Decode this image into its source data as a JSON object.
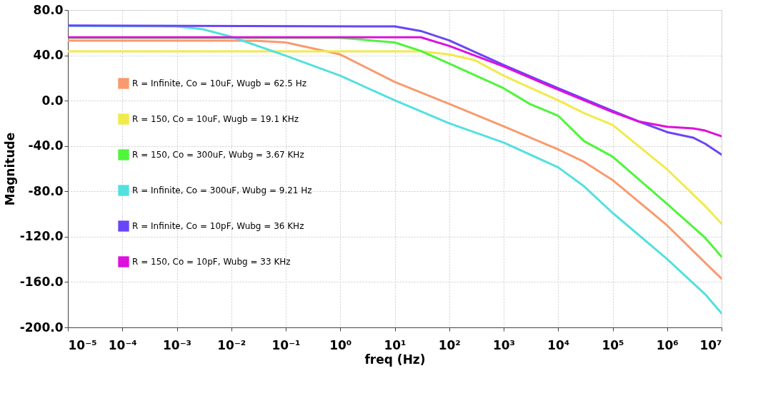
{
  "chart_data": {
    "type": "line",
    "xlabel": "freq (Hz)",
    "ylabel": "Magnitude",
    "log": "x",
    "grid": true,
    "legend": "bottom left",
    "line_style": "solid",
    "marker": "none",
    "xlim": [
      1e-05,
      10000000
    ],
    "ylim": [
      -200,
      80
    ],
    "xticks": [
      {
        "value": 1e-05,
        "label": "10⁻⁵"
      },
      {
        "value": 0.0001,
        "label": "10⁻⁴"
      },
      {
        "value": 0.001,
        "label": "10⁻³"
      },
      {
        "value": 0.01,
        "label": "10⁻²"
      },
      {
        "value": 0.1,
        "label": "10⁻¹"
      },
      {
        "value": 1,
        "label": "10⁰"
      },
      {
        "value": 10,
        "label": "10¹"
      },
      {
        "value": 100,
        "label": "10²"
      },
      {
        "value": 1000,
        "label": "10³"
      },
      {
        "value": 10000,
        "label": "10⁴"
      },
      {
        "value": 100000,
        "label": "10⁵"
      },
      {
        "value": 1000000,
        "label": "10⁶"
      },
      {
        "value": 10000000,
        "label": "10⁷"
      }
    ],
    "yticks": [
      {
        "value": 80,
        "label": "80.0"
      },
      {
        "value": 40,
        "label": "40.0"
      },
      {
        "value": 0,
        "label": "0.0"
      },
      {
        "value": -40,
        "label": "-40.0"
      },
      {
        "value": -80,
        "label": "-80.0"
      },
      {
        "value": -120,
        "label": "-120.0"
      },
      {
        "value": -160,
        "label": "-160.0"
      },
      {
        "value": -200,
        "label": "-200.0"
      }
    ],
    "series": [
      {
        "name": "R = Infinite, Co = 10uF, Wugb = 62.5 Hz",
        "color": "#f99a6e",
        "x": [
          1e-05,
          0.01,
          0.03,
          0.1,
          1,
          10,
          100,
          1000,
          10000,
          30000,
          100000,
          1000000,
          5000000,
          10000000
        ],
        "values": [
          53,
          53,
          52.8,
          51.4,
          40.8,
          16.5,
          -2.8,
          -22.7,
          -43,
          -54,
          -70,
          -110,
          -143,
          -157
        ]
      },
      {
        "name": "R = 150, Co = 10uF, Wugb = 19.1 KHz",
        "color": "#f2ea4a",
        "x": [
          1e-05,
          30,
          100,
          300,
          1000,
          10000,
          30000,
          100000,
          1000000,
          5000000,
          10000000
        ],
        "values": [
          43.5,
          43.5,
          40.8,
          35.6,
          22,
          0.3,
          -11,
          -21.4,
          -60.6,
          -93,
          -108.5
        ]
      },
      {
        "name": "R = 150, Co = 300uF, Wubg = 3.67 KHz",
        "color": "#4ef53b",
        "x": [
          1e-05,
          1,
          10,
          30,
          100,
          1000,
          3000,
          10000,
          30000,
          100000,
          1000000,
          5000000,
          10000000
        ],
        "values": [
          55.5,
          55.5,
          51.4,
          43.9,
          32.7,
          11,
          -2.8,
          -13.3,
          -35.7,
          -49.4,
          -91,
          -121,
          -137.8
        ]
      },
      {
        "name": "R = Infinite, Co = 300uF, Wubg = 9.21 Hz",
        "color": "#53e0e0",
        "x": [
          1e-05,
          0.001,
          0.003,
          0.01,
          0.1,
          1,
          10,
          100,
          1000,
          10000,
          30000,
          100000,
          1000000,
          5000000,
          10000000
        ],
        "values": [
          66,
          65.5,
          63,
          56.4,
          39.7,
          22,
          0.3,
          -20,
          -37,
          -58.8,
          -75.6,
          -99,
          -139.7,
          -170.8,
          -187.6
        ]
      },
      {
        "name": "R = Infinite, Co = 10pF, Wubg = 36 KHz",
        "color": "#6a45f7",
        "x": [
          1e-05,
          10,
          30,
          100,
          1000,
          10000,
          100000,
          300000,
          1000000,
          3000000,
          5000000,
          10000000
        ],
        "values": [
          66.3,
          65.5,
          61.5,
          53.2,
          31.5,
          11,
          -9,
          -18.3,
          -27.7,
          -32.6,
          -38,
          -47.6
        ]
      },
      {
        "name": "R = 150, Co = 10pF, Wubg = 33 KHz",
        "color": "#dd10dd",
        "x": [
          1e-05,
          30,
          100,
          1000,
          10000,
          100000,
          300000,
          1000000,
          3000000,
          5000000,
          10000000
        ],
        "values": [
          55.9,
          55.9,
          48.3,
          30.2,
          9.7,
          -10,
          -18.3,
          -23,
          -24.5,
          -26.4,
          -31.4
        ]
      }
    ]
  }
}
